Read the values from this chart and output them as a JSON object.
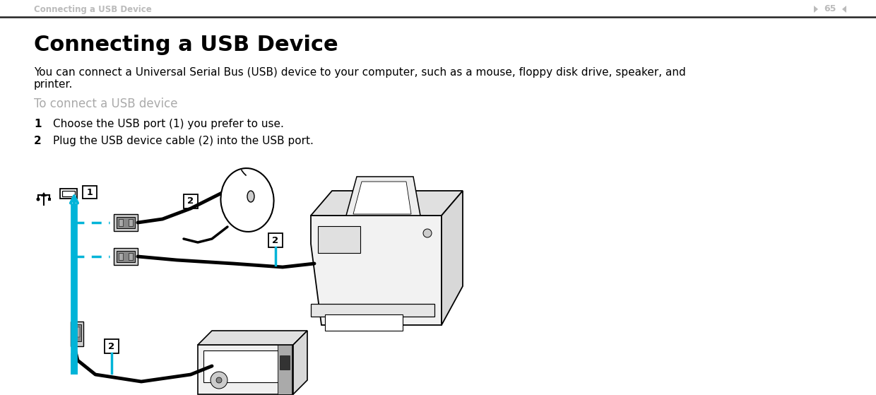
{
  "bg_color": "#ffffff",
  "header_text": "Connecting a USB Device",
  "header_color": "#bbbbbb",
  "page_number": "65",
  "separator_color": "#333333",
  "title": "Connecting a USB Device",
  "title_fontsize": 22,
  "title_color": "#000000",
  "body_text1": "You can connect a Universal Serial Bus (USB) device to your computer, such as a mouse, floppy disk drive, speaker, and",
  "body_text2": "printer.",
  "body_fontsize": 11,
  "body_color": "#000000",
  "subheading": "To connect a USB device",
  "subheading_color": "#aaaaaa",
  "subheading_fontsize": 12,
  "step_fontsize": 11,
  "step_color": "#000000",
  "cyan_color": "#00b4d8",
  "label_box_color": "#000000"
}
